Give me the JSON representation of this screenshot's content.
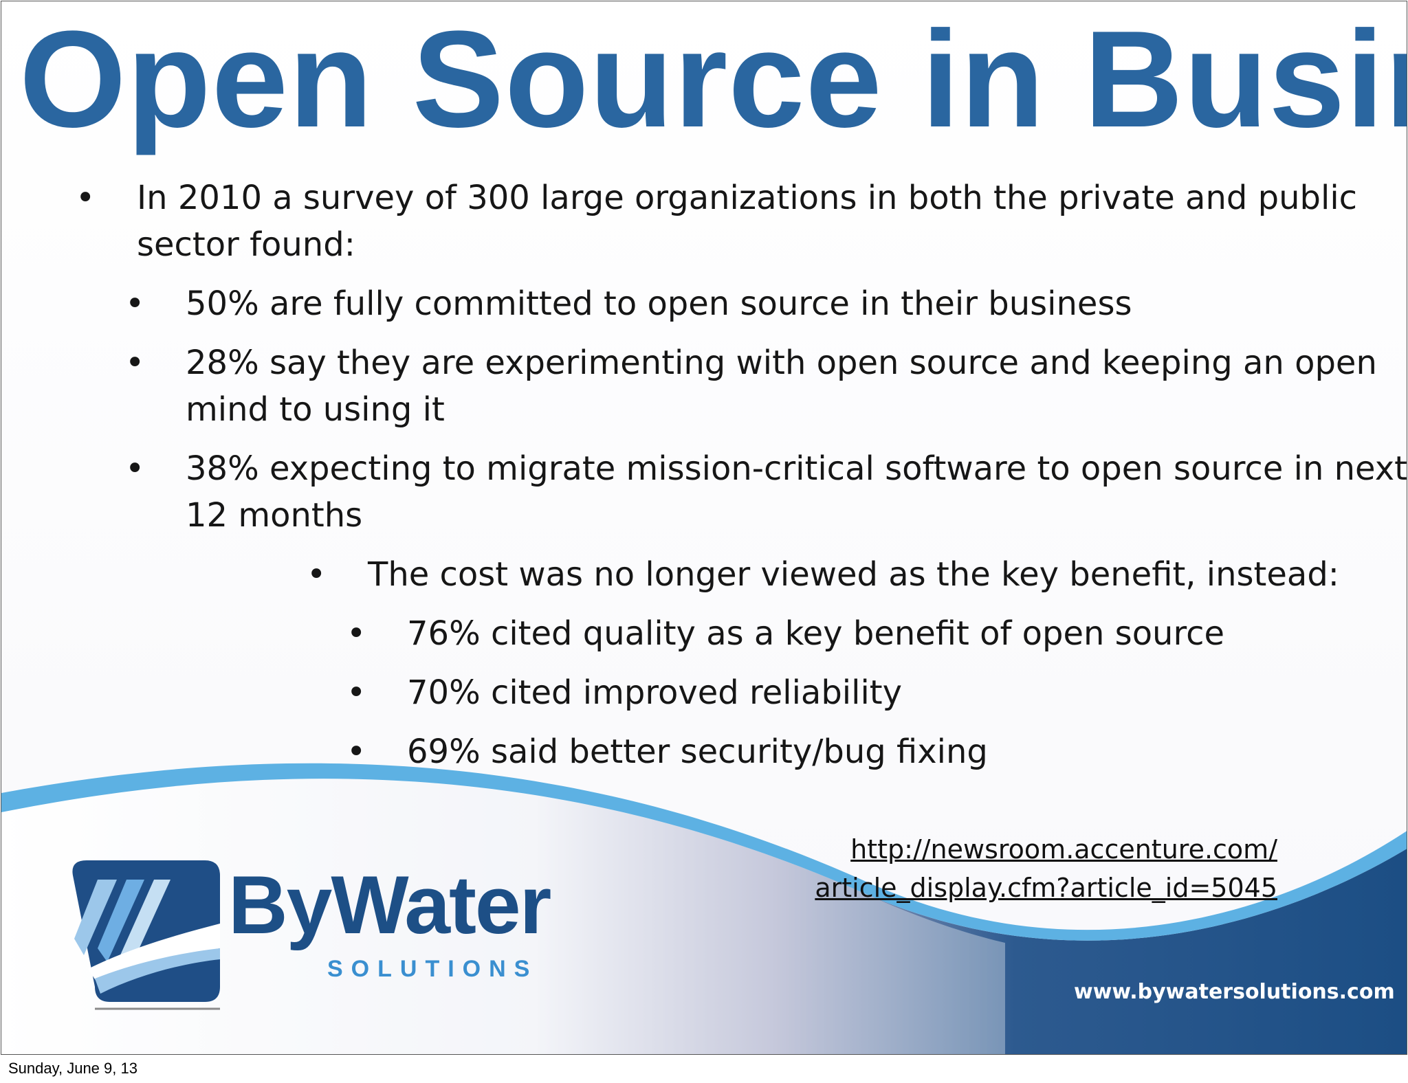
{
  "slide": {
    "title": "Open Source in Business",
    "bullets": [
      {
        "level": 1,
        "lines": [
          "In 2010 a survey of 300 large organizations in both the private and public",
          "sector found:"
        ]
      },
      {
        "level": 2,
        "lines": [
          "50% are fully committed to open source in their business"
        ]
      },
      {
        "level": 2,
        "lines": [
          "28% say they are experimenting with open source and keeping an open",
          "mind to using it"
        ]
      },
      {
        "level": 2,
        "lines": [
          "38% expecting to migrate mission-critical software to open source in next",
          "12 months"
        ]
      },
      {
        "level": 3,
        "lines": [
          "The cost was no longer viewed as the key benefit, instead:"
        ]
      },
      {
        "level": 4,
        "lines": [
          "76% cited quality as a key benefit of open source"
        ]
      },
      {
        "level": 4,
        "lines": [
          "70% cited improved reliability"
        ]
      },
      {
        "level": 4,
        "lines": [
          "69% said better security/bug fixing"
        ]
      }
    ],
    "source_link": {
      "line1": "http://newsroom.accenture.com/",
      "line2": "article_display.cfm?article_id=5045"
    }
  },
  "branding": {
    "logo_name": "ByWater",
    "logo_sub": "SOLUTIONS",
    "website": "www.bywatersolutions.com",
    "logo_icon": "bywater-logo-icon"
  },
  "footer": {
    "date": "Sunday, June 9, 13"
  },
  "colors": {
    "title": "#2a66a0",
    "wave_light": "#5db1e3",
    "wave_dark": "#1c4e84",
    "brand": "#1d4f86"
  }
}
